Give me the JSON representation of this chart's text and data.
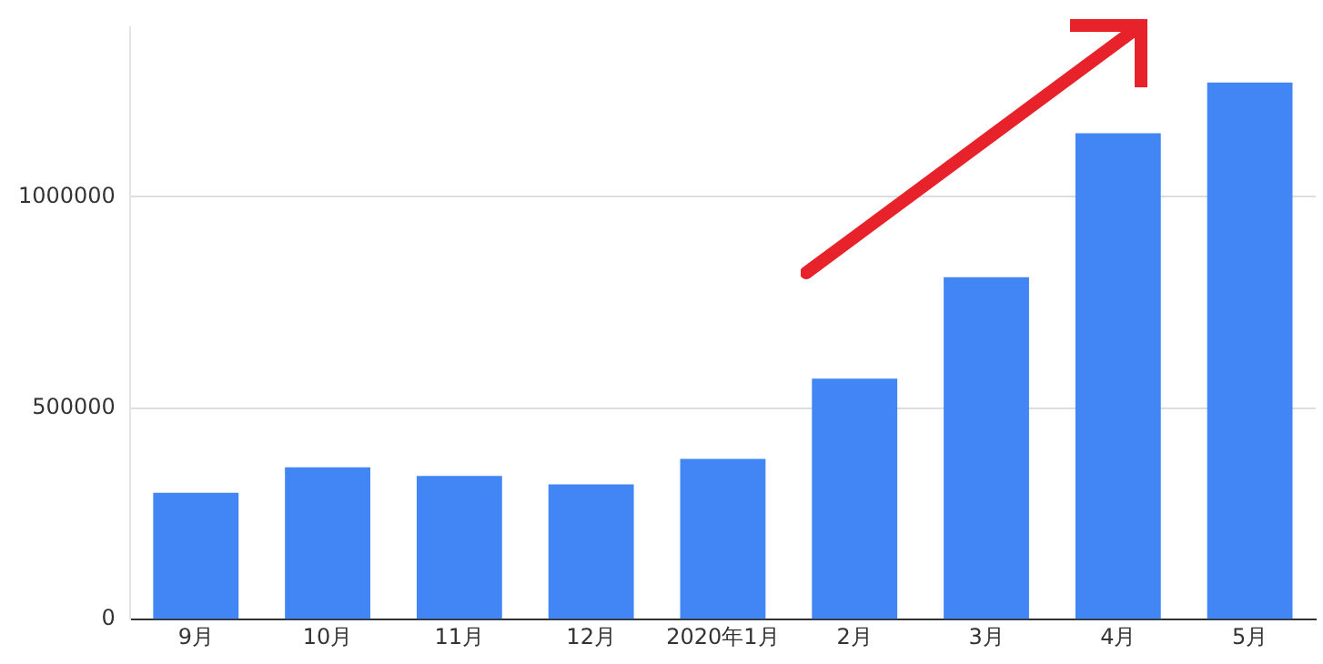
{
  "chart_data": {
    "type": "bar",
    "categories": [
      "9月",
      "10月",
      "11月",
      "12月",
      "2020年1月",
      "2月",
      "3月",
      "4月",
      "5月"
    ],
    "values": [
      300000,
      360000,
      340000,
      320000,
      380000,
      570000,
      810000,
      1150000,
      1270000
    ],
    "color": "#4285f4",
    "ylim": [
      0,
      1400000
    ],
    "yticks": [
      0,
      500000,
      1000000
    ],
    "grid": "y",
    "legend": false
  }
}
